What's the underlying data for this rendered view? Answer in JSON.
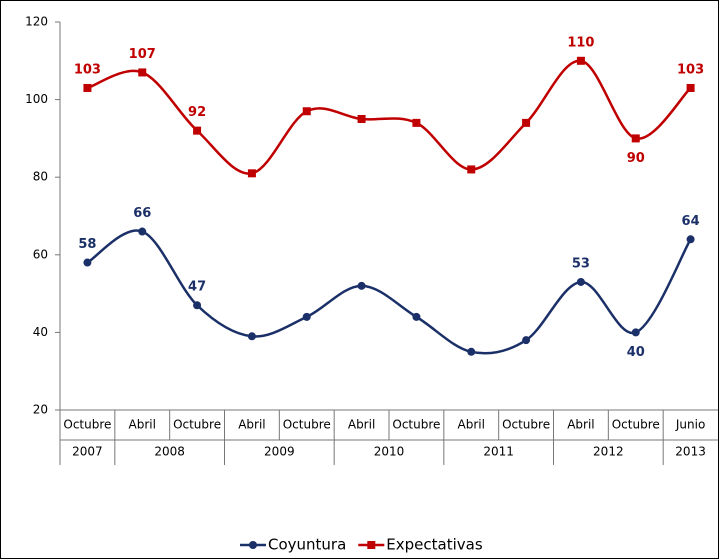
{
  "chart_data": {
    "type": "line",
    "categories": [
      "Octubre",
      "Abril",
      "Octubre",
      "Abril",
      "Octubre",
      "Abril",
      "Octubre",
      "Abril",
      "Octubre",
      "Abril",
      "Octubre",
      "Junio"
    ],
    "years": [
      "2007",
      "2008",
      null,
      "2009",
      null,
      "2010",
      null,
      "2011",
      null,
      "2012",
      null,
      "2013"
    ],
    "series": [
      {
        "name": "Coyuntura",
        "color": "#1b3068",
        "marker": "circle",
        "values": [
          58,
          66,
          47,
          39,
          44,
          52,
          44,
          35,
          38,
          53,
          40,
          64
        ],
        "value_labels": [
          "58",
          "66",
          "47",
          null,
          null,
          null,
          null,
          null,
          null,
          "53",
          "40",
          "64"
        ]
      },
      {
        "name": "Expectativas",
        "color": "#c00000",
        "marker": "square",
        "values": [
          103,
          107,
          92,
          81,
          97,
          95,
          94,
          82,
          94,
          110,
          90,
          103
        ],
        "value_labels": [
          "103",
          "107",
          "92",
          null,
          null,
          null,
          null,
          null,
          null,
          "110",
          "90",
          "103"
        ]
      }
    ],
    "ylim": [
      20,
      120
    ],
    "yticks": [
      20,
      40,
      60,
      80,
      100,
      120
    ],
    "grid": false,
    "smooth": true,
    "legend": "bottom"
  }
}
